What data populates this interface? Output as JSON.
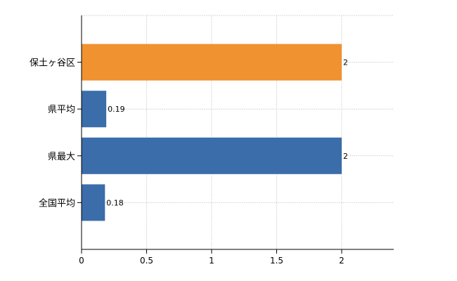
{
  "chart_data": {
    "type": "bar",
    "orientation": "horizontal",
    "categories": [
      "保土ヶ谷区",
      "県平均",
      "県最大",
      "全国平均"
    ],
    "values": [
      2,
      0.19,
      2,
      0.18
    ],
    "data_labels": [
      "2",
      "0.19",
      "2",
      "0.18"
    ],
    "bar_colors": [
      "#f0922f",
      "#3a6daa",
      "#3a6daa",
      "#3a6daa"
    ],
    "x_ticks": [
      0,
      0.5,
      1,
      1.5,
      2
    ],
    "x_tick_labels": [
      "0",
      "0.5",
      "1",
      "1.5",
      "2"
    ],
    "xlim": [
      0,
      2.4
    ],
    "grid": true,
    "title": "",
    "xlabel": "",
    "ylabel": ""
  }
}
